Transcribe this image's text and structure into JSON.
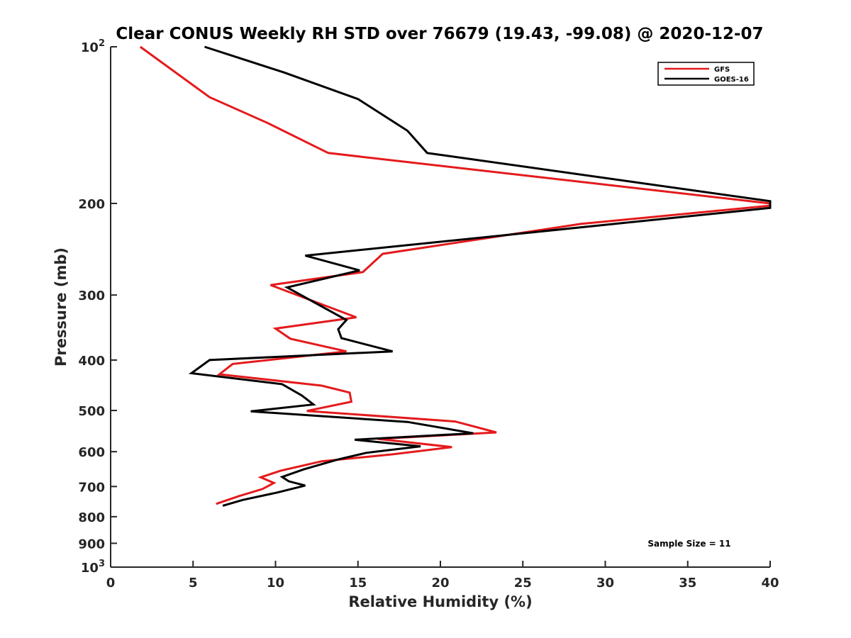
{
  "chart_data": {
    "type": "line",
    "title": "Clear CONUS Weekly RH STD over 76679 (19.43, -99.08) @ 2020-12-07",
    "xlabel": "Relative Humidity (%)",
    "ylabel": "Pressure (mb)",
    "xlim": [
      0,
      40
    ],
    "ylim": [
      100,
      1000
    ],
    "y_scale": "log",
    "y_reversed": true,
    "x_ticks": [
      0,
      5,
      10,
      15,
      20,
      25,
      30,
      35,
      40
    ],
    "y_ticks": [
      {
        "value": 100,
        "label": "10",
        "exp": "2"
      },
      {
        "value": 200,
        "label": "200"
      },
      {
        "value": 300,
        "label": "300"
      },
      {
        "value": 400,
        "label": "400"
      },
      {
        "value": 500,
        "label": "500"
      },
      {
        "value": 600,
        "label": "600"
      },
      {
        "value": 700,
        "label": "700"
      },
      {
        "value": 800,
        "label": "800"
      },
      {
        "value": 900,
        "label": "900"
      },
      {
        "value": 1000,
        "label": "10",
        "exp": "3"
      }
    ],
    "grid": false,
    "legend_position": "top-right",
    "series": [
      {
        "name": "GFS",
        "color": "#e41a1c",
        "points": [
          [
            1.8,
            100
          ],
          [
            6.0,
            125
          ],
          [
            9.5,
            140
          ],
          [
            13.2,
            160
          ],
          [
            40.0,
            200
          ],
          [
            40.0,
            202
          ],
          [
            28.5,
            219
          ],
          [
            16.5,
            250
          ],
          [
            15.3,
            271
          ],
          [
            9.7,
            287
          ],
          [
            14.9,
            331
          ],
          [
            10.0,
            348
          ],
          [
            10.9,
            364
          ],
          [
            14.3,
            385
          ],
          [
            7.4,
            407
          ],
          [
            6.6,
            426
          ],
          [
            12.8,
            448
          ],
          [
            14.5,
            462
          ],
          [
            14.6,
            481
          ],
          [
            11.9,
            501
          ],
          [
            20.9,
            525
          ],
          [
            23.4,
            551
          ],
          [
            16.2,
            567
          ],
          [
            20.7,
            588
          ],
          [
            17.1,
            607
          ],
          [
            12.8,
            626
          ],
          [
            10.3,
            653
          ],
          [
            9.1,
            672
          ],
          [
            9.9,
            689
          ],
          [
            9.2,
            708
          ],
          [
            7.8,
            730
          ],
          [
            6.4,
            756
          ]
        ]
      },
      {
        "name": "GOES-16",
        "color": "#000000",
        "points": [
          [
            5.7,
            100
          ],
          [
            10.5,
            112
          ],
          [
            15.0,
            126
          ],
          [
            18.0,
            145
          ],
          [
            19.2,
            160
          ],
          [
            40.0,
            198
          ],
          [
            40.0,
            204
          ],
          [
            11.8,
            252
          ],
          [
            15.1,
            269
          ],
          [
            10.7,
            290
          ],
          [
            14.3,
            335
          ],
          [
            13.8,
            349
          ],
          [
            14.0,
            363
          ],
          [
            17.1,
            385
          ],
          [
            6.0,
            400
          ],
          [
            4.9,
            424
          ],
          [
            10.4,
            445
          ],
          [
            11.6,
            468
          ],
          [
            12.3,
            487
          ],
          [
            8.5,
            502
          ],
          [
            18.0,
            526
          ],
          [
            22.0,
            553
          ],
          [
            14.8,
            569
          ],
          [
            18.8,
            586
          ],
          [
            15.5,
            603
          ],
          [
            13.8,
            621
          ],
          [
            11.7,
            649
          ],
          [
            10.4,
            671
          ],
          [
            10.8,
            684
          ],
          [
            11.8,
            697
          ],
          [
            10.1,
            719
          ],
          [
            8.0,
            743
          ],
          [
            6.8,
            762
          ]
        ]
      }
    ],
    "annotations": [
      "Sample Size = 11"
    ]
  }
}
